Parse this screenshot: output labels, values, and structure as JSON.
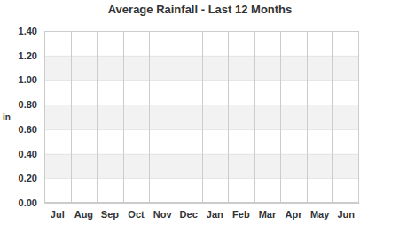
{
  "chart_data": {
    "type": "bar",
    "title": "Average Rainfall - Last 12 Months",
    "y_label": "in",
    "categories": [
      "Jul",
      "Aug",
      "Sep",
      "Oct",
      "Nov",
      "Dec",
      "Jan",
      "Feb",
      "Mar",
      "Apr",
      "May",
      "Jun"
    ],
    "values": [
      null,
      null,
      null,
      null,
      null,
      null,
      null,
      null,
      null,
      null,
      null,
      null
    ],
    "ylim": [
      0,
      1.4
    ],
    "yticks": [
      {
        "value": 0,
        "label": "0.00"
      },
      {
        "value": 0.2,
        "label": "0.20"
      },
      {
        "value": 0.4,
        "label": "0.40"
      },
      {
        "value": 0.6,
        "label": "0.60"
      },
      {
        "value": 0.8,
        "label": "0.80"
      },
      {
        "value": 1.0,
        "label": "1.00"
      },
      {
        "value": 1.2,
        "label": "1.20"
      },
      {
        "value": 1.4,
        "label": "1.40"
      }
    ],
    "grid": true
  }
}
